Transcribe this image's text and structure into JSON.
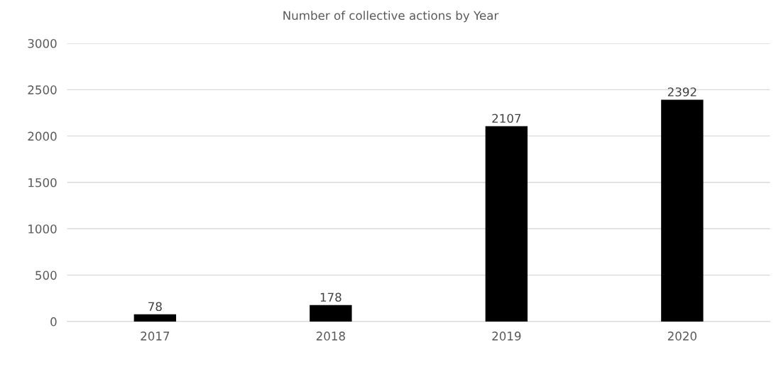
{
  "chart_data": {
    "type": "bar",
    "title": "Number of collective actions by Year",
    "categories": [
      "2017",
      "2018",
      "2019",
      "2020"
    ],
    "values": [
      78,
      178,
      2107,
      2392
    ],
    "color": "#000000",
    "ylim": [
      0,
      3000
    ],
    "yticks": [
      0,
      500,
      1000,
      1500,
      2000,
      2500,
      3000
    ],
    "grid": "y",
    "data_labels": true
  }
}
